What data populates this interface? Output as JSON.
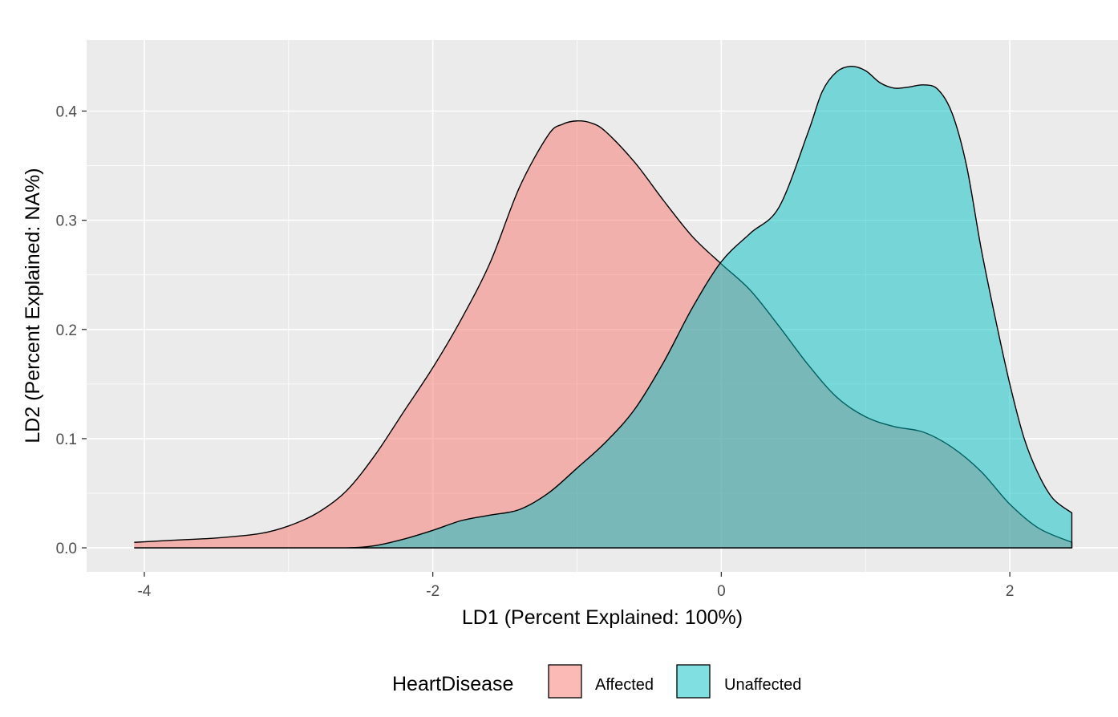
{
  "chart_data": {
    "type": "area",
    "xlabel": "LD1 (Percent Explained: 100%)",
    "ylabel": "LD2 (Percent Explained: NA%)",
    "xlim": [
      -4.4,
      2.75
    ],
    "ylim": [
      -0.022,
      0.465
    ],
    "x_ticks": [
      -4,
      -2,
      0,
      2
    ],
    "x_tick_labels": [
      "-4",
      "-2",
      "0",
      "2"
    ],
    "y_ticks": [
      0.0,
      0.1,
      0.2,
      0.3,
      0.4
    ],
    "y_tick_labels": [
      "0.0",
      "0.1",
      "0.2",
      "0.3",
      "0.4"
    ],
    "grid": true,
    "legend": {
      "title": "HeartDisease",
      "position": "bottom",
      "items": [
        "Affected",
        "Unaffected"
      ]
    },
    "series": [
      {
        "name": "Affected",
        "color": "#F8766D",
        "x": [
          -4.07,
          -3.8,
          -3.5,
          -3.2,
          -3.0,
          -2.8,
          -2.6,
          -2.4,
          -2.2,
          -2.0,
          -1.8,
          -1.6,
          -1.4,
          -1.2,
          -1.1,
          -1.0,
          -0.9,
          -0.8,
          -0.6,
          -0.4,
          -0.2,
          0.0,
          0.2,
          0.4,
          0.6,
          0.8,
          1.0,
          1.2,
          1.4,
          1.6,
          1.8,
          2.0,
          2.2,
          2.43
        ],
        "y": [
          0.005,
          0.007,
          0.009,
          0.013,
          0.02,
          0.032,
          0.052,
          0.085,
          0.125,
          0.165,
          0.21,
          0.262,
          0.33,
          0.378,
          0.388,
          0.391,
          0.389,
          0.381,
          0.353,
          0.318,
          0.285,
          0.26,
          0.236,
          0.203,
          0.168,
          0.138,
          0.12,
          0.111,
          0.106,
          0.092,
          0.07,
          0.04,
          0.018,
          0.005
        ]
      },
      {
        "name": "Unaffected",
        "color": "#00BFC4",
        "x": [
          -4.07,
          -3.0,
          -2.6,
          -2.4,
          -2.2,
          -2.0,
          -1.8,
          -1.6,
          -1.4,
          -1.2,
          -1.0,
          -0.8,
          -0.6,
          -0.4,
          -0.2,
          0.0,
          0.2,
          0.4,
          0.6,
          0.7,
          0.8,
          0.9,
          1.0,
          1.1,
          1.2,
          1.3,
          1.4,
          1.5,
          1.6,
          1.7,
          1.8,
          1.9,
          2.0,
          2.1,
          2.2,
          2.3,
          2.43
        ],
        "y": [
          0.0,
          0.0,
          0.0,
          0.002,
          0.008,
          0.016,
          0.025,
          0.03,
          0.035,
          0.05,
          0.073,
          0.097,
          0.127,
          0.17,
          0.22,
          0.262,
          0.288,
          0.312,
          0.38,
          0.418,
          0.436,
          0.441,
          0.437,
          0.426,
          0.421,
          0.422,
          0.424,
          0.42,
          0.398,
          0.35,
          0.275,
          0.21,
          0.15,
          0.1,
          0.067,
          0.045,
          0.032
        ]
      }
    ]
  }
}
